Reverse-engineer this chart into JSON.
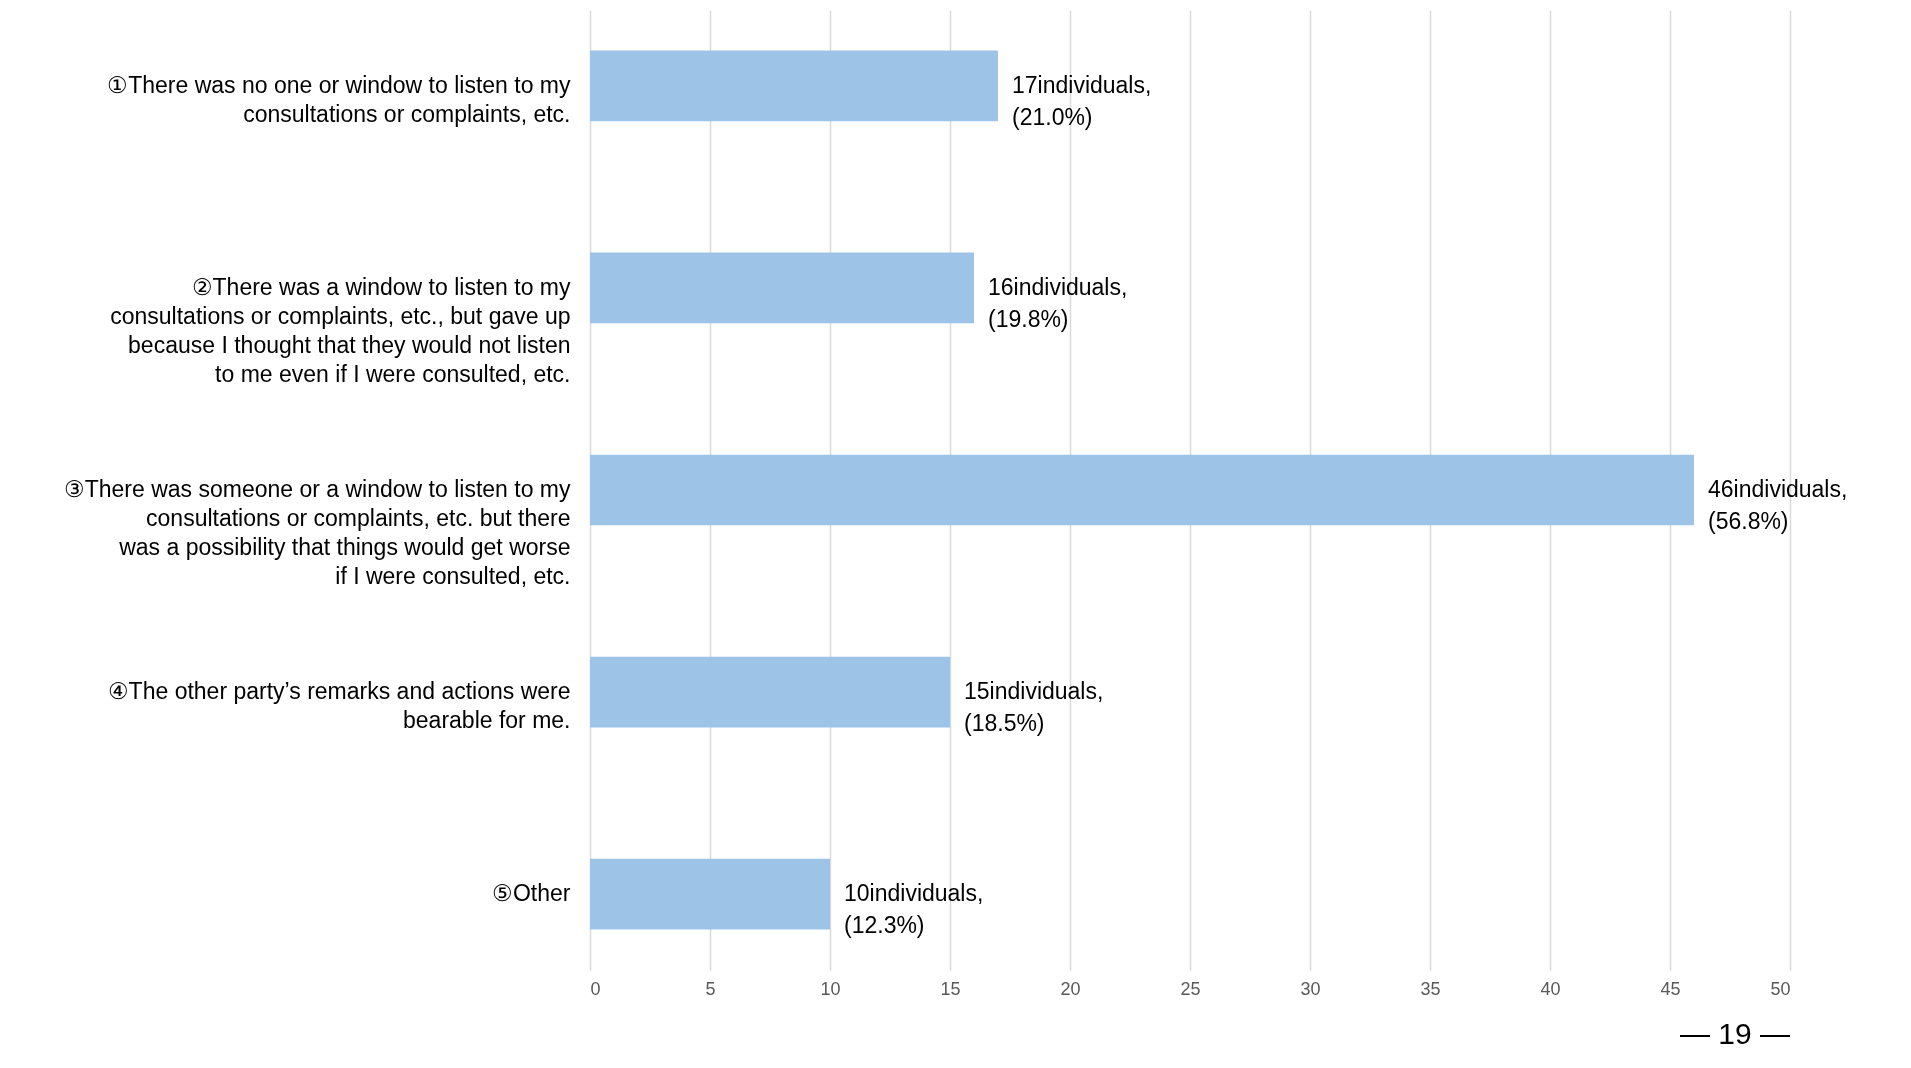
{
  "chart_data": {
    "type": "bar",
    "orientation": "horizontal",
    "categories": [
      "①There was no one or window to listen to my consultations or complaints, etc.",
      "②There was a window to listen to my consultations or complaints, etc., but gave up because I thought that they would not listen to me even if I were consulted, etc.",
      "③There was someone or a window to listen to my consultations or complaints, etc. but there was a possibility that things would get worse if I were consulted, etc.",
      "④The other party’s remarks and actions were bearable for me.",
      "⑤Other"
    ],
    "values": [
      17,
      16,
      46,
      15,
      10
    ],
    "color": "#9dc3e6",
    "value_labels": [
      "17individuals,\n(21.0%)",
      "16individuals,\n(19.8%)",
      "46individuals,\n(56.8%)",
      "15individuals,\n(18.5%)",
      "10individuals,\n(12.3%)"
    ],
    "xlim": [
      0,
      50
    ],
    "xticks": [
      0,
      5,
      10,
      15,
      20,
      25,
      30,
      35,
      40,
      45,
      50
    ],
    "grid": "x",
    "annotations": [
      "— 19 —"
    ]
  }
}
